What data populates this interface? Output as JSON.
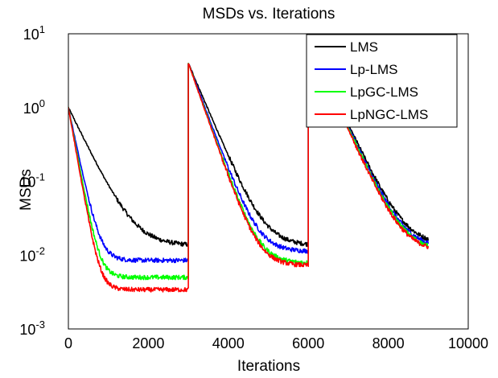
{
  "chart_data": {
    "type": "line",
    "title": "MSDs vs. Iterations",
    "xlabel": "Iterations",
    "ylabel": "MSDs",
    "xlim": [
      0,
      10000
    ],
    "ylim": [
      0.001,
      10
    ],
    "yscale": "log",
    "grid": false,
    "legend_position": "top-right",
    "x_ticks": [
      0,
      2000,
      4000,
      6000,
      8000,
      10000
    ],
    "x_tick_labels": [
      "0",
      "2000",
      "4000",
      "6000",
      "8000",
      "10000"
    ],
    "y_ticks": [
      0.001,
      0.01,
      0.1,
      1,
      10
    ],
    "y_tick_labels": [
      {
        "base": "10",
        "exp": "-3"
      },
      {
        "base": "10",
        "exp": "-2"
      },
      {
        "base": "10",
        "exp": "-1"
      },
      {
        "base": "10",
        "exp": "0"
      },
      {
        "base": "10",
        "exp": "1"
      }
    ],
    "series": [
      {
        "name": "LMS",
        "color": "#000000",
        "segments": [
          {
            "start": 0,
            "end": 3000,
            "initial": 1.0,
            "final": 0.0135,
            "tau": 390
          },
          {
            "start": 3000,
            "end": 6000,
            "initial": 4.0,
            "final": 0.0135,
            "tau": 340
          },
          {
            "start": 6000,
            "end": 9000,
            "initial": 8.0,
            "final": 0.0135,
            "tau": 380
          }
        ]
      },
      {
        "name": "Lp-LMS",
        "color": "#0000ff",
        "segments": [
          {
            "start": 0,
            "end": 3000,
            "initial": 1.0,
            "final": 0.0085,
            "tau": 170
          },
          {
            "start": 3000,
            "end": 6000,
            "initial": 4.0,
            "final": 0.0112,
            "tau": 300
          },
          {
            "start": 6000,
            "end": 9000,
            "initial": 8.0,
            "final": 0.0122,
            "tau": 370
          }
        ]
      },
      {
        "name": "LpGC-LMS",
        "color": "#00ff00",
        "segments": [
          {
            "start": 0,
            "end": 3000,
            "initial": 1.0,
            "final": 0.005,
            "tau": 150
          },
          {
            "start": 3000,
            "end": 6000,
            "initial": 4.0,
            "final": 0.0078,
            "tau": 285
          },
          {
            "start": 6000,
            "end": 9000,
            "initial": 8.0,
            "final": 0.0112,
            "tau": 365
          }
        ]
      },
      {
        "name": "LpNGC-LMS",
        "color": "#ff0000",
        "segments": [
          {
            "start": 0,
            "end": 3000,
            "initial": 1.0,
            "final": 0.0034,
            "tau": 140
          },
          {
            "start": 3000,
            "end": 6000,
            "initial": 4.0,
            "final": 0.0072,
            "tau": 280
          },
          {
            "start": 6000,
            "end": 9000,
            "initial": 8.0,
            "final": 0.011,
            "tau": 360
          }
        ]
      }
    ]
  }
}
